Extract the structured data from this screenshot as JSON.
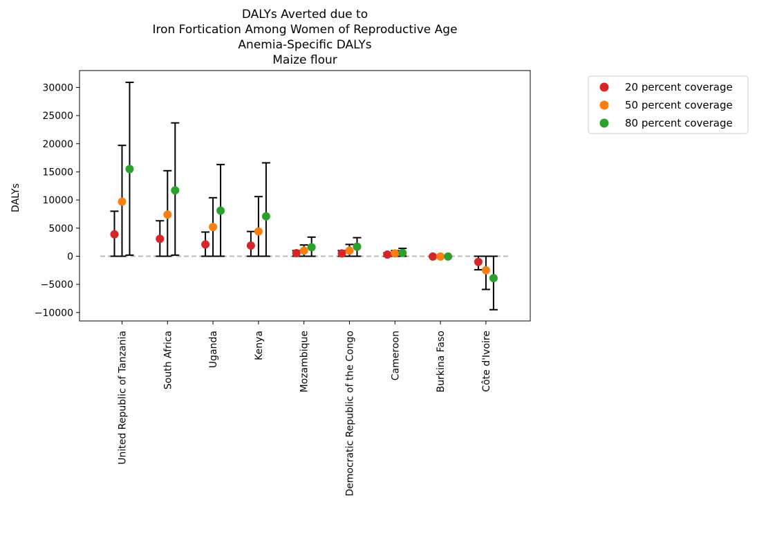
{
  "chart_data": {
    "type": "scatter",
    "title_lines": [
      "DALYs Averted due to",
      "Iron Fortication Among Women of Reproductive Age",
      "Anemia-Specific DALYs",
      "Maize flour"
    ],
    "xlabel": "",
    "ylabel": "DALYs",
    "ylim": [
      -11500,
      33000
    ],
    "yticks": [
      -10000,
      -5000,
      0,
      5000,
      10000,
      15000,
      20000,
      25000,
      30000
    ],
    "ytick_labels": [
      "−10000",
      "−5000",
      "0",
      "5000",
      "10000",
      "15000",
      "20000",
      "25000",
      "30000"
    ],
    "categories": [
      "United Republic of Tanzania",
      "South Africa",
      "Uganda",
      "Kenya",
      "Mozambique",
      "Democratic Republic of the Congo",
      "Cameroon",
      "Burkina Faso",
      "Côte d'Ivoire"
    ],
    "reference_line": 0,
    "series": [
      {
        "name": "20 percent coverage",
        "color": "#d62728",
        "values": [
          3900,
          3100,
          2100,
          1900,
          550,
          500,
          300,
          -50,
          -1000
        ],
        "lower": [
          0,
          0,
          0,
          0,
          0,
          0,
          0,
          -100,
          -2400
        ],
        "upper": [
          8000,
          6300,
          4300,
          4400,
          1000,
          1000,
          600,
          0,
          0
        ]
      },
      {
        "name": "50 percent coverage",
        "color": "#ff7f0e",
        "values": [
          9700,
          7400,
          5200,
          4400,
          1000,
          1000,
          500,
          -50,
          -2500
        ],
        "lower": [
          0,
          0,
          0,
          0,
          0,
          0,
          0,
          -100,
          -5900
        ],
        "upper": [
          19700,
          15200,
          10400,
          10600,
          2000,
          2100,
          1000,
          0,
          0
        ]
      },
      {
        "name": "80 percent coverage",
        "color": "#2ca02c",
        "values": [
          15500,
          11700,
          8100,
          7100,
          1600,
          1700,
          600,
          -50,
          -3900
        ],
        "lower": [
          200,
          200,
          0,
          0,
          0,
          0,
          0,
          -100,
          -9500
        ],
        "upper": [
          30900,
          23700,
          16300,
          16600,
          3400,
          3300,
          1400,
          0,
          0
        ]
      }
    ],
    "legend": {
      "placement": "outside-right-top",
      "entries": [
        "20 percent coverage",
        "50 percent coverage",
        "80 percent coverage"
      ]
    },
    "grid": false
  }
}
